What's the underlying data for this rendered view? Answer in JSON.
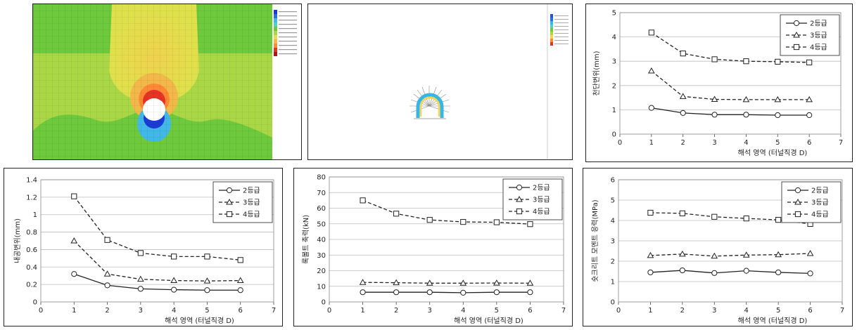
{
  "images": {
    "contour_field": {
      "colors": [
        "#6ec93c",
        "#d9e04a",
        "#e6c94b",
        "#ff9b37",
        "#e53325",
        "#1c3bd6",
        "#41b8e6"
      ]
    },
    "deformed_tunnel": {
      "colors": [
        "#36b6e6",
        "#ffd24a",
        "#2255cc"
      ]
    }
  },
  "chart_data": [
    {
      "id": "chart-crown",
      "type": "line",
      "xlabel": "해석 영역 (터널직경 D)",
      "ylabel": "천단변위(mm)",
      "xlim": [
        0,
        7
      ],
      "ylim": [
        0,
        5
      ],
      "xticks": [
        0,
        1,
        2,
        3,
        4,
        5,
        6,
        7
      ],
      "yticks": [
        0,
        1,
        2,
        3,
        4,
        5
      ],
      "grid": true,
      "legend": "top-right",
      "x": [
        1,
        2,
        3,
        4,
        5,
        6
      ],
      "series": [
        {
          "name": "2등급",
          "marker": "circle",
          "dash": "solid",
          "values": [
            1.08,
            0.87,
            0.8,
            0.8,
            0.78,
            0.78
          ]
        },
        {
          "name": "3등급",
          "marker": "triangle",
          "dash": "dashed",
          "values": [
            2.6,
            1.55,
            1.43,
            1.42,
            1.42,
            1.42
          ]
        },
        {
          "name": "4등급",
          "marker": "square",
          "dash": "dashed",
          "values": [
            4.18,
            3.32,
            3.08,
            3.0,
            2.98,
            2.95
          ]
        }
      ]
    },
    {
      "id": "chart-convergence",
      "type": "line",
      "xlabel": "해석 영역 (터널직경 D)",
      "ylabel": "내공변위(mm)",
      "xlim": [
        0,
        7
      ],
      "ylim": [
        0,
        1.4
      ],
      "xticks": [
        0,
        1,
        2,
        3,
        4,
        5,
        6,
        7
      ],
      "yticks": [
        0,
        0.2,
        0.4,
        0.6,
        0.8,
        1.0,
        1.2,
        1.4
      ],
      "grid": true,
      "legend": "top-right",
      "x": [
        1,
        2,
        3,
        4,
        5,
        6
      ],
      "series": [
        {
          "name": "2등급",
          "marker": "circle",
          "dash": "solid",
          "values": [
            0.32,
            0.19,
            0.15,
            0.14,
            0.135,
            0.135
          ]
        },
        {
          "name": "3등급",
          "marker": "triangle",
          "dash": "dashed",
          "values": [
            0.7,
            0.32,
            0.26,
            0.245,
            0.24,
            0.245
          ]
        },
        {
          "name": "4등급",
          "marker": "square",
          "dash": "dashed",
          "values": [
            1.21,
            0.71,
            0.56,
            0.52,
            0.52,
            0.48
          ]
        }
      ]
    },
    {
      "id": "chart-rockbolt",
      "type": "line",
      "xlabel": "해석 영역 (터널직경 D)",
      "ylabel": "록볼트 축력(kN)",
      "xlim": [
        0,
        7
      ],
      "ylim": [
        0,
        80
      ],
      "xticks": [
        0,
        1,
        2,
        3,
        4,
        5,
        6,
        7
      ],
      "yticks": [
        0,
        10,
        20,
        30,
        40,
        50,
        60,
        70,
        80
      ],
      "grid": true,
      "legend": "top-right",
      "x": [
        1,
        2,
        3,
        4,
        5,
        6
      ],
      "series": [
        {
          "name": "2등급",
          "marker": "circle",
          "dash": "solid",
          "values": [
            6.2,
            6.2,
            6.2,
            5.9,
            6.2,
            6.2
          ]
        },
        {
          "name": "3등급",
          "marker": "triangle",
          "dash": "dashed",
          "values": [
            12.5,
            12.3,
            12.0,
            12.0,
            12.1,
            12.0
          ]
        },
        {
          "name": "4등급",
          "marker": "square",
          "dash": "dashed",
          "values": [
            65.0,
            56.5,
            52.5,
            51.2,
            51.0,
            49.8
          ]
        }
      ]
    },
    {
      "id": "chart-shotcrete",
      "type": "line",
      "xlabel": "해석 영역 (터널직경 D)",
      "ylabel": "숏크리트 모멘트 응력(MPa)",
      "xlim": [
        0,
        7
      ],
      "ylim": [
        0,
        6
      ],
      "xticks": [
        0,
        1,
        2,
        3,
        4,
        5,
        6,
        7
      ],
      "yticks": [
        0,
        1,
        2,
        3,
        4,
        5,
        6
      ],
      "grid": true,
      "legend": "top-right",
      "x": [
        1,
        2,
        3,
        4,
        5,
        6
      ],
      "series": [
        {
          "name": "2등급",
          "marker": "circle",
          "dash": "solid",
          "values": [
            1.45,
            1.55,
            1.42,
            1.53,
            1.45,
            1.4
          ]
        },
        {
          "name": "3등급",
          "marker": "triangle",
          "dash": "dashed",
          "values": [
            2.28,
            2.35,
            2.25,
            2.3,
            2.32,
            2.38
          ]
        },
        {
          "name": "4등급",
          "marker": "square",
          "dash": "dashed",
          "values": [
            4.38,
            4.35,
            4.18,
            4.1,
            4.03,
            3.83
          ]
        }
      ]
    }
  ]
}
